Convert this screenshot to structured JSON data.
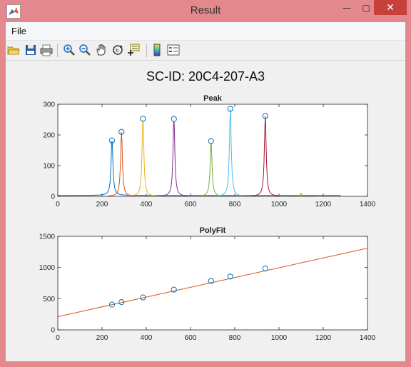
{
  "window": {
    "title": "Result",
    "minimize_glyph": "—",
    "maximize_glyph": "▢",
    "close_glyph": "✕"
  },
  "menu": {
    "file": "File"
  },
  "toolbar_icons": [
    "open-file-icon",
    "save-icon",
    "print-icon",
    "zoom-in-icon",
    "zoom-out-icon",
    "pan-hand-icon",
    "rotate-3d-icon",
    "data-cursor-icon",
    "colorbar-icon",
    "legend-icon"
  ],
  "figure_title": "SC-ID: 20C4-207-A3",
  "chart_data": [
    {
      "type": "line",
      "title": "Peak",
      "xlim": [
        0,
        1400
      ],
      "ylim": [
        0,
        300
      ],
      "xticks": [
        0,
        200,
        400,
        600,
        800,
        1000,
        1200,
        1400
      ],
      "yticks": [
        0,
        100,
        200,
        300
      ],
      "x_range_of_signal": [
        0,
        1280
      ],
      "baseline": 3,
      "series": [
        {
          "center": 245,
          "peak": 182,
          "color": "#0072bd"
        },
        {
          "center": 288,
          "peak": 210,
          "color": "#d95319"
        },
        {
          "center": 385,
          "peak": 253,
          "color": "#edb120"
        },
        {
          "center": 525,
          "peak": 252,
          "color": "#7e2f8e"
        },
        {
          "center": 693,
          "peak": 180,
          "color": "#77ac30"
        },
        {
          "center": 780,
          "peak": 285,
          "color": "#4dbeee"
        },
        {
          "center": 938,
          "peak": 262,
          "color": "#a2142f"
        },
        {
          "center": 1100,
          "peak": 10,
          "color": "#77ac30"
        }
      ],
      "markers": {
        "x": [
          245,
          288,
          385,
          525,
          693,
          780,
          938
        ],
        "y": [
          182,
          210,
          253,
          252,
          180,
          285,
          262
        ],
        "color": "#0072bd"
      }
    },
    {
      "type": "scatter",
      "title": "PolyFit",
      "xlim": [
        0,
        1400
      ],
      "ylim": [
        0,
        1500
      ],
      "xticks": [
        0,
        200,
        400,
        600,
        800,
        1000,
        1200,
        1400
      ],
      "yticks": [
        0,
        500,
        1000,
        1500
      ],
      "points": {
        "x": [
          245,
          288,
          385,
          525,
          693,
          780,
          938
        ],
        "y": [
          405,
          445,
          520,
          645,
          785,
          855,
          985
        ],
        "color": "#0072bd"
      },
      "fit_line": {
        "x": [
          0,
          1400
        ],
        "y": [
          212,
          1310
        ],
        "color": "#d95319"
      }
    }
  ]
}
